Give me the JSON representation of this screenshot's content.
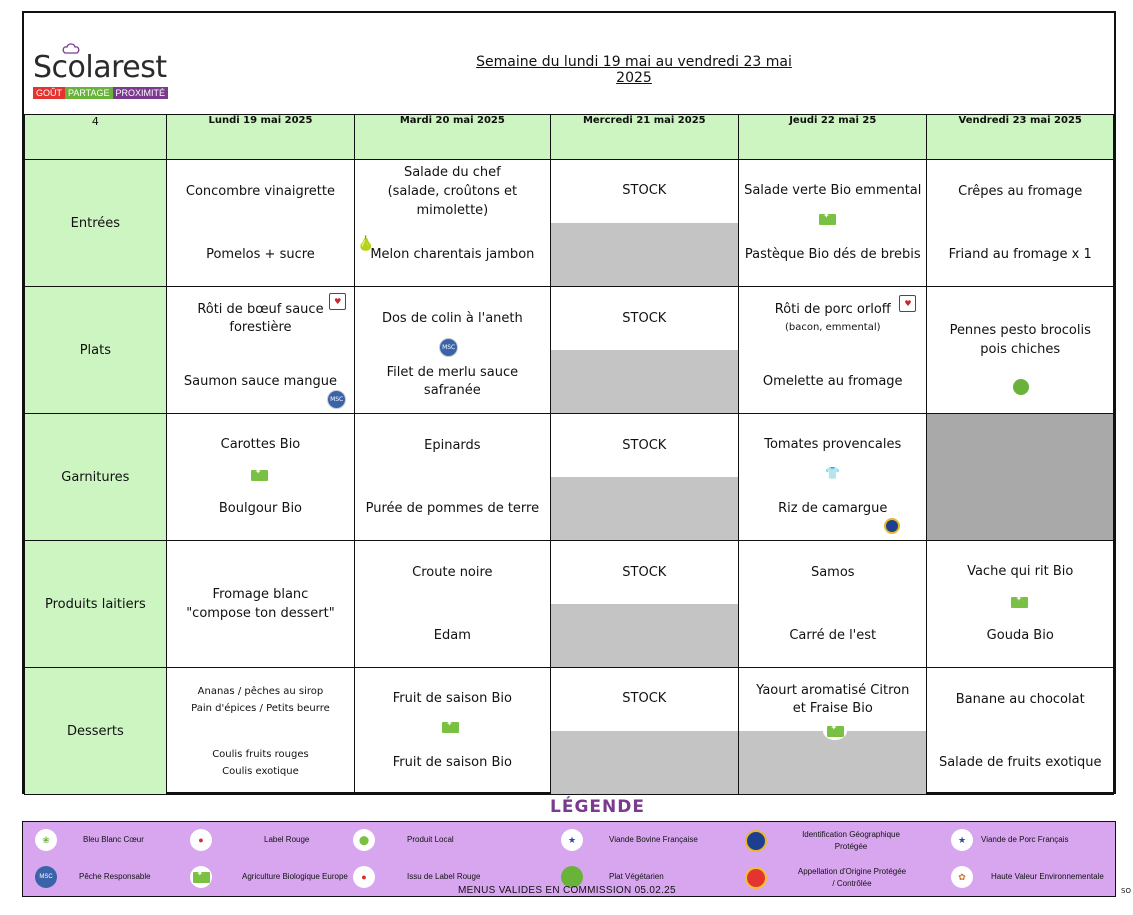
{
  "brand": {
    "name": "Scolarest",
    "tagline": [
      "GOÛT",
      "PARTAGE",
      "PROXIMITÉ"
    ],
    "tagline_colors": [
      "#e3342f",
      "#6ab33b",
      "#7a3b8f"
    ]
  },
  "week_title": "Semaine du lundi 19 mai au vendredi 23 mai 2025",
  "week_number": "4",
  "days": [
    "Lundi 19 mai 2025",
    "Mardi 20 mai 2025",
    "Mercredi 21 mai 2025",
    "Jeudi 22 mai 25",
    "Vendredi 23 mai 2025"
  ],
  "rows": {
    "entrees": {
      "label": "Entrées",
      "lundi": [
        "Concombre vinaigrette",
        "Pomelos + sucre"
      ],
      "mardi": [
        "Salade du chef",
        "(salade, croûtons et mimolette)",
        "Melon charentais jambon"
      ],
      "mercredi": [
        "STOCK"
      ],
      "jeudi": [
        "Salade verte Bio emmental",
        "Pastèque Bio  dés de brebis"
      ],
      "vendredi": [
        "Crêpes au fromage",
        "Friand au fromage x 1"
      ]
    },
    "plats": {
      "label": "Plats",
      "lundi": [
        "Rôti de bœuf sauce forestière",
        "Saumon sauce mangue"
      ],
      "mardi": [
        "Dos de colin à l'aneth",
        "Filet de merlu sauce safranée"
      ],
      "mercredi": [
        "STOCK"
      ],
      "jeudi": [
        "Rôti de porc orloff",
        "(bacon, emmental)",
        "Omelette au fromage"
      ],
      "vendredi": [
        "Pennes pesto brocolis pois chiches"
      ]
    },
    "garnitures": {
      "label": "Garnitures",
      "lundi": [
        "Carottes Bio",
        "Boulgour Bio"
      ],
      "mardi": [
        "Epinards",
        "Purée de pommes de terre"
      ],
      "mercredi": [
        "STOCK"
      ],
      "jeudi": [
        "Tomates provencales",
        "Riz de camargue"
      ]
    },
    "laitiers": {
      "label": "Produits laitiers",
      "lundi": [
        "Fromage blanc",
        "\"compose ton dessert\""
      ],
      "mardi": [
        "Croute noire",
        "Edam"
      ],
      "mercredi": [
        "STOCK"
      ],
      "jeudi": [
        "Samos",
        "Carré de l'est"
      ],
      "vendredi": [
        "Vache qui rit Bio",
        "Gouda Bio"
      ]
    },
    "desserts": {
      "label": "Desserts",
      "lundi": [
        "Ananas / pêches au sirop",
        "Pain d'épices / Petits beurre",
        "Coulis fruits rouges",
        "Coulis exotique"
      ],
      "mardi": [
        "Fruit de saison Bio",
        "Fruit de saison Bio"
      ],
      "mercredi": [
        "STOCK"
      ],
      "jeudi": [
        "Yaourt aromatisé Citron et Fraise  Bio"
      ],
      "vendredi": [
        "Banane au chocolat",
        "Salade de fruits exotique"
      ]
    }
  },
  "legend": {
    "title": "LÉGENDE",
    "items": [
      {
        "label": "Bleu Blanc Cœur",
        "icon": "bleu-blanc-coeur-icon",
        "color": "#6ab33b"
      },
      {
        "label": "Label Rouge",
        "icon": "label-rouge-icon",
        "color": "#d62d2d"
      },
      {
        "label": "Produit Local",
        "icon": "local-product-icon",
        "color": "#7ac143"
      },
      {
        "label": "Viande Bovine Française",
        "icon": "viande-bovine-francaise-icon",
        "color": "#2c4b9a"
      },
      {
        "label": "Identification Géographique Protégée",
        "icon": "igp-icon",
        "color": "#1d3f8f"
      },
      {
        "label": "Viande de Porc Français",
        "icon": "porc-francais-icon",
        "color": "#2c4b9a"
      },
      {
        "label": "Pêche Responsable",
        "icon": "peche-responsable-icon",
        "color": "#3a63a8"
      },
      {
        "label": "Agriculture Biologique Europe",
        "icon": "eu-organic-icon",
        "color": "#7ac143"
      },
      {
        "label": "Issu de Label Rouge",
        "icon": "issu-label-rouge-icon",
        "color": "#d62d2d"
      },
      {
        "label": "Plat Végétarien",
        "icon": "vegetarian-icon",
        "color": "#6ab33b"
      },
      {
        "label": "Appellation d'Origine Protégée / Contrôlée",
        "icon": "aop-icon",
        "color": "#e3342f"
      },
      {
        "label": "Haute Valeur Environnementale",
        "icon": "hve-icon",
        "color": "#c5762f"
      }
    ]
  },
  "footer_note": "MENUS VALIDES EN COMMISSION 05.02.25",
  "page_code": "SO"
}
